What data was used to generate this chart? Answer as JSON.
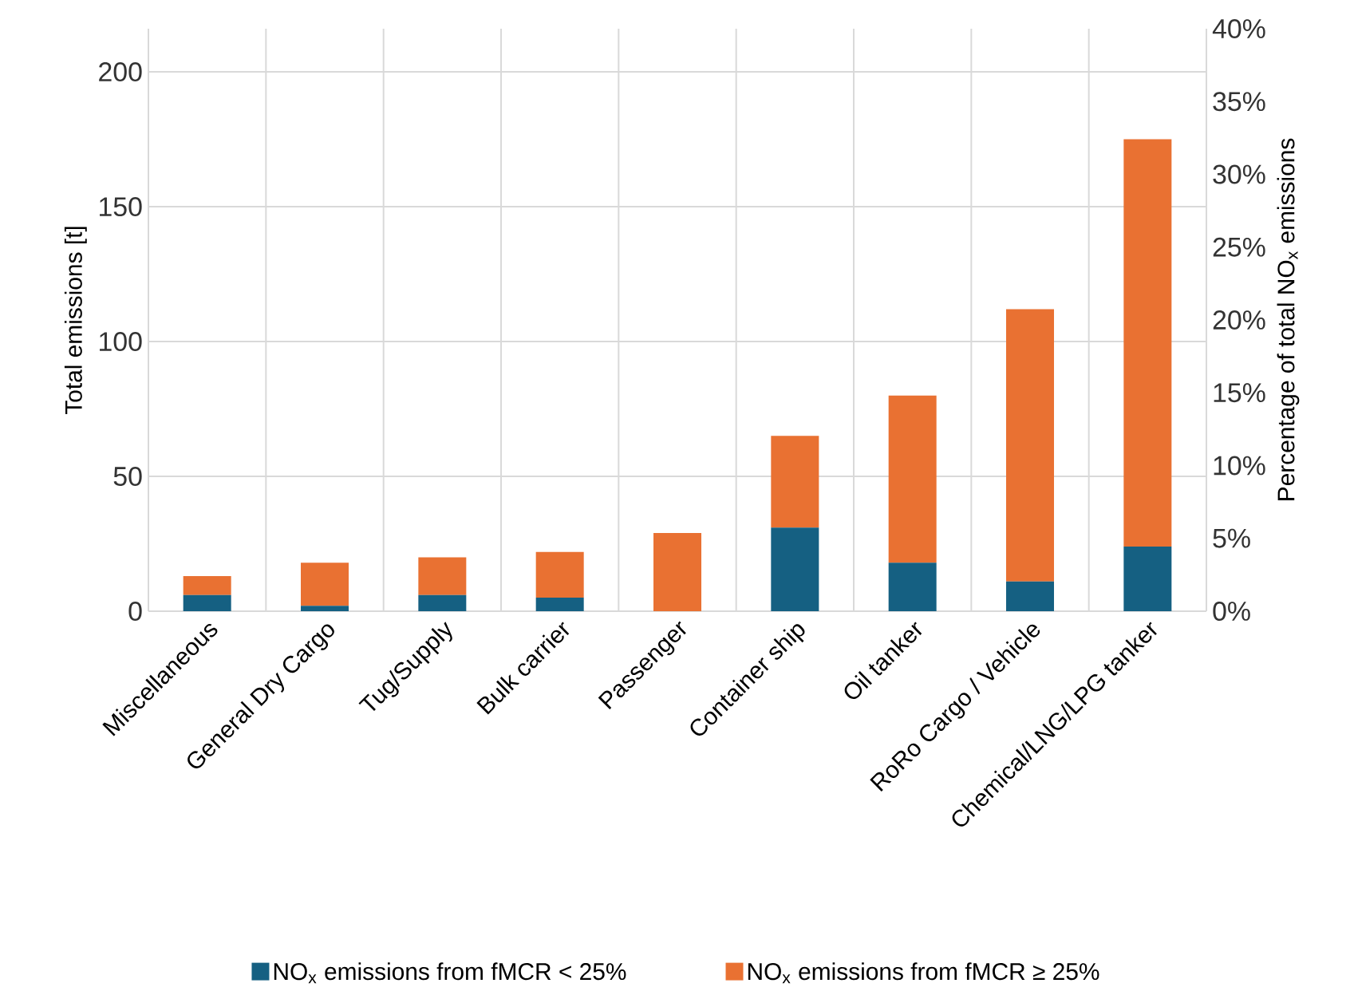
{
  "chart_data": {
    "type": "bar",
    "stacked": true,
    "categories": [
      "Miscellaneous",
      "General Dry Cargo",
      "Tug/Supply",
      "Bulk carrier",
      "Passenger",
      "Container ship",
      "Oil tanker",
      "RoRo Cargo / Vehicle",
      "Chemical/LNG/LPG tanker"
    ],
    "series": [
      {
        "name": "NO$_{x}$ emissions from fMCR < 25%",
        "color": "#156082",
        "values": [
          6,
          2,
          6,
          5,
          0,
          31,
          18,
          11,
          24
        ]
      },
      {
        "name": "NO$_{x}$ emissions from fMCR ≥ 25%",
        "color": "#e97132",
        "values": [
          7,
          16,
          14,
          17,
          29,
          34,
          62,
          101,
          151
        ]
      }
    ],
    "ylabel": "Total emissions [t]",
    "y2label": "Percentage of total NO$_{x}$ emissions",
    "ylim": [
      0,
      216
    ],
    "yticks": [
      0,
      50,
      100,
      150,
      200
    ],
    "y2lim": [
      0,
      40
    ],
    "y2ticks": [
      {
        "value": 0,
        "label": "0%"
      },
      {
        "value": 5,
        "label": "5%"
      },
      {
        "value": 10,
        "label": "10%"
      },
      {
        "value": 15,
        "label": "15%"
      },
      {
        "value": 20,
        "label": "20%"
      },
      {
        "value": 25,
        "label": "25%"
      },
      {
        "value": 30,
        "label": "30%"
      },
      {
        "value": 35,
        "label": "35%"
      },
      {
        "value": 40,
        "label": "40%"
      }
    ],
    "grid": true,
    "legend": "bottom"
  }
}
